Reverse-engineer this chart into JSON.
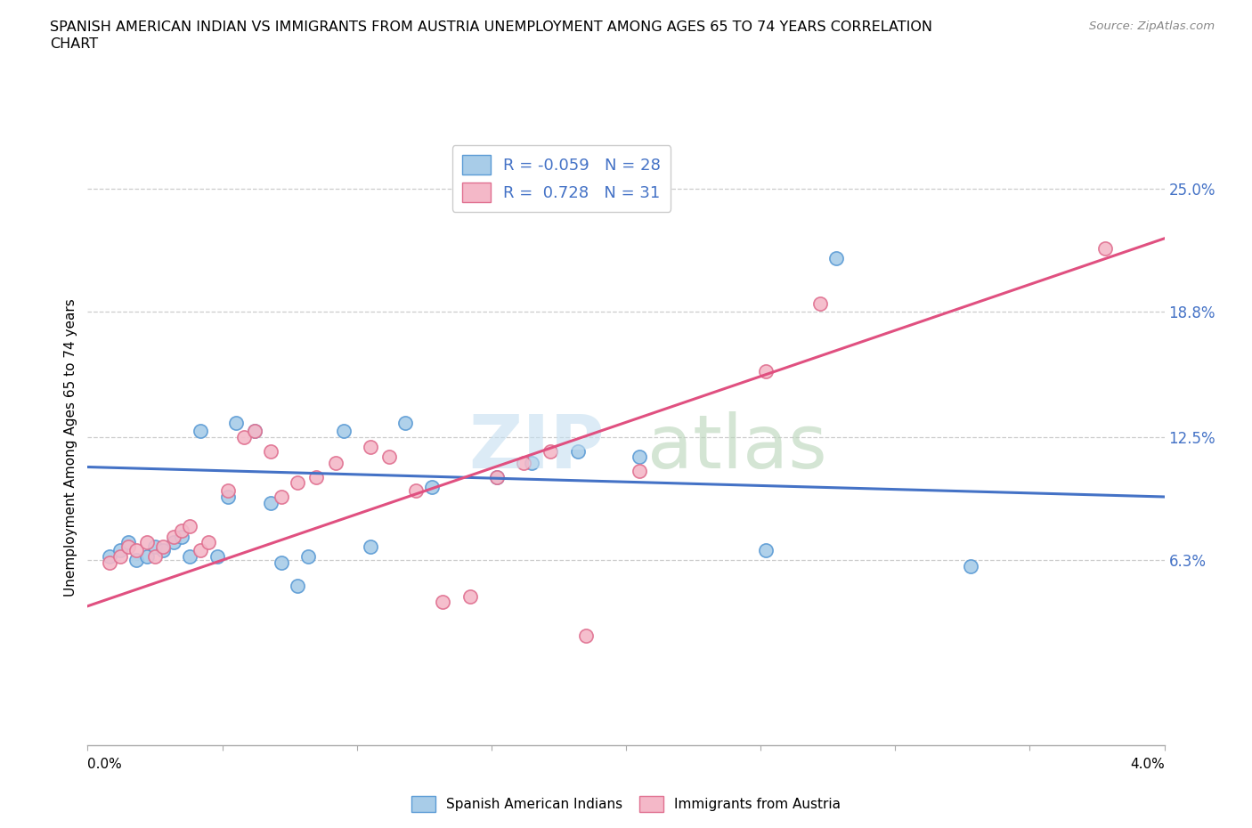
{
  "title_line1": "SPANISH AMERICAN INDIAN VS IMMIGRANTS FROM AUSTRIA UNEMPLOYMENT AMONG AGES 65 TO 74 YEARS CORRELATION",
  "title_line2": "CHART",
  "source": "Source: ZipAtlas.com",
  "ylabel": "Unemployment Among Ages 65 to 74 years",
  "ytick_values": [
    6.3,
    12.5,
    18.8,
    25.0
  ],
  "xlim": [
    0.0,
    4.0
  ],
  "ylim": [
    -3.0,
    27.0
  ],
  "color_blue_fill": "#a8cce8",
  "color_blue_edge": "#5b9bd5",
  "color_pink_fill": "#f4b8c8",
  "color_pink_edge": "#e07090",
  "color_blue_line": "#4472c6",
  "color_pink_line": "#e05080",
  "color_ytick": "#4472c6",
  "blue_scatter_x": [
    0.08,
    0.12,
    0.15,
    0.18,
    0.22,
    0.25,
    0.28,
    0.32,
    0.35,
    0.38,
    0.42,
    0.48,
    0.52,
    0.55,
    0.62,
    0.68,
    0.72,
    0.78,
    0.82,
    0.95,
    1.05,
    1.18,
    1.28,
    1.52,
    1.65,
    1.82,
    2.05,
    2.52,
    2.78,
    3.28
  ],
  "blue_scatter_y": [
    6.5,
    6.8,
    7.2,
    6.3,
    6.5,
    7.0,
    6.8,
    7.2,
    7.5,
    6.5,
    12.8,
    6.5,
    9.5,
    13.2,
    12.8,
    9.2,
    6.2,
    5.0,
    6.5,
    12.8,
    7.0,
    13.2,
    10.0,
    10.5,
    11.2,
    11.8,
    11.5,
    6.8,
    21.5,
    6.0
  ],
  "pink_scatter_x": [
    0.08,
    0.12,
    0.15,
    0.18,
    0.22,
    0.25,
    0.28,
    0.32,
    0.35,
    0.38,
    0.42,
    0.45,
    0.52,
    0.58,
    0.62,
    0.68,
    0.72,
    0.78,
    0.85,
    0.92,
    1.05,
    1.12,
    1.22,
    1.32,
    1.42,
    1.52,
    1.62,
    1.72,
    1.85,
    2.05,
    2.52,
    2.72,
    3.78
  ],
  "pink_scatter_y": [
    6.2,
    6.5,
    7.0,
    6.8,
    7.2,
    6.5,
    7.0,
    7.5,
    7.8,
    8.0,
    6.8,
    7.2,
    9.8,
    12.5,
    12.8,
    11.8,
    9.5,
    10.2,
    10.5,
    11.2,
    12.0,
    11.5,
    9.8,
    4.2,
    4.5,
    10.5,
    11.2,
    11.8,
    2.5,
    10.8,
    15.8,
    19.2,
    22.0
  ],
  "blue_trend_x": [
    0.0,
    4.0
  ],
  "blue_trend_y": [
    11.0,
    9.5
  ],
  "pink_trend_x": [
    0.0,
    4.0
  ],
  "pink_trend_y": [
    4.0,
    22.5
  ]
}
